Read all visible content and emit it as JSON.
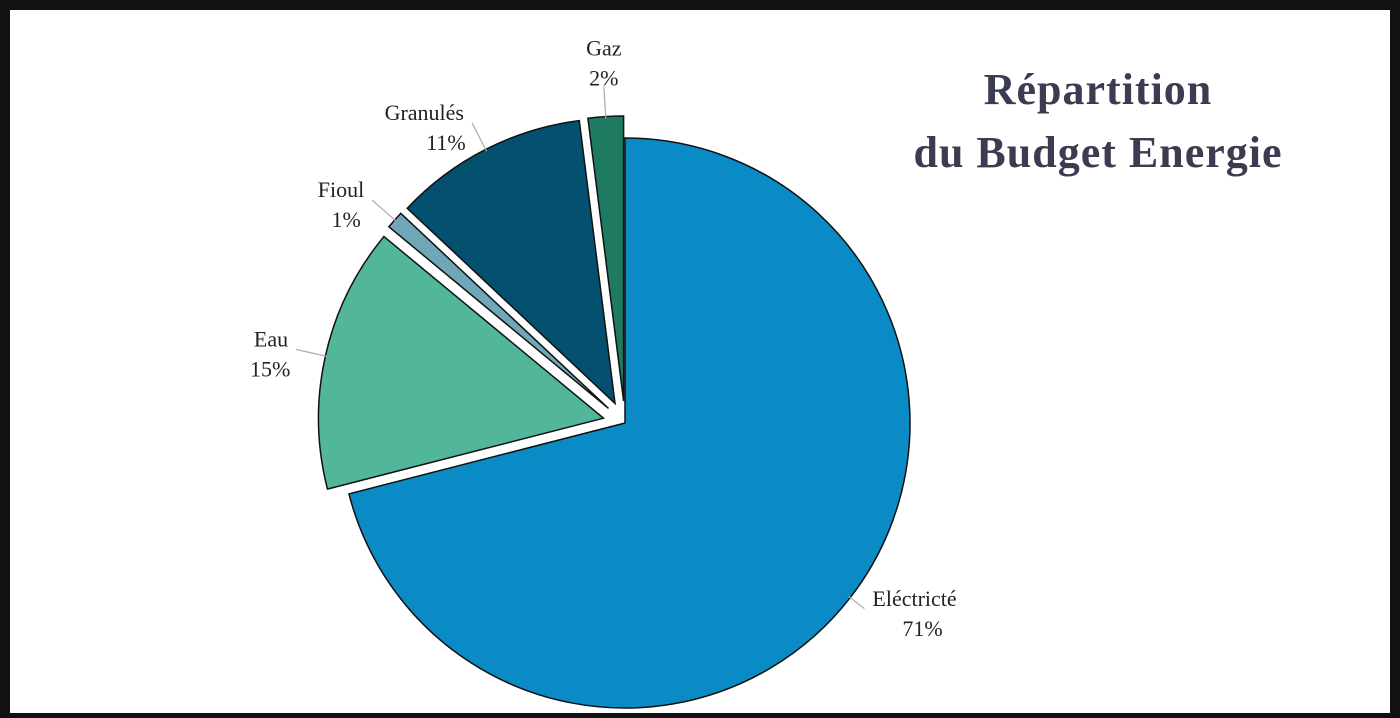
{
  "chart_data": {
    "type": "pie",
    "title_lines": [
      "Répartition",
      "du Budget Energie"
    ],
    "categories": [
      "Eléctricté",
      "Eau",
      "Fioul",
      "Granulés",
      "Gaz"
    ],
    "values": [
      71,
      15,
      1,
      11,
      2
    ],
    "value_labels": [
      "71%",
      "15%",
      "1%",
      "11%",
      "2%"
    ],
    "colors": [
      "#0a8bc6",
      "#52b79a",
      "#6fa6b8",
      "#04506f",
      "#1f7a62"
    ]
  }
}
